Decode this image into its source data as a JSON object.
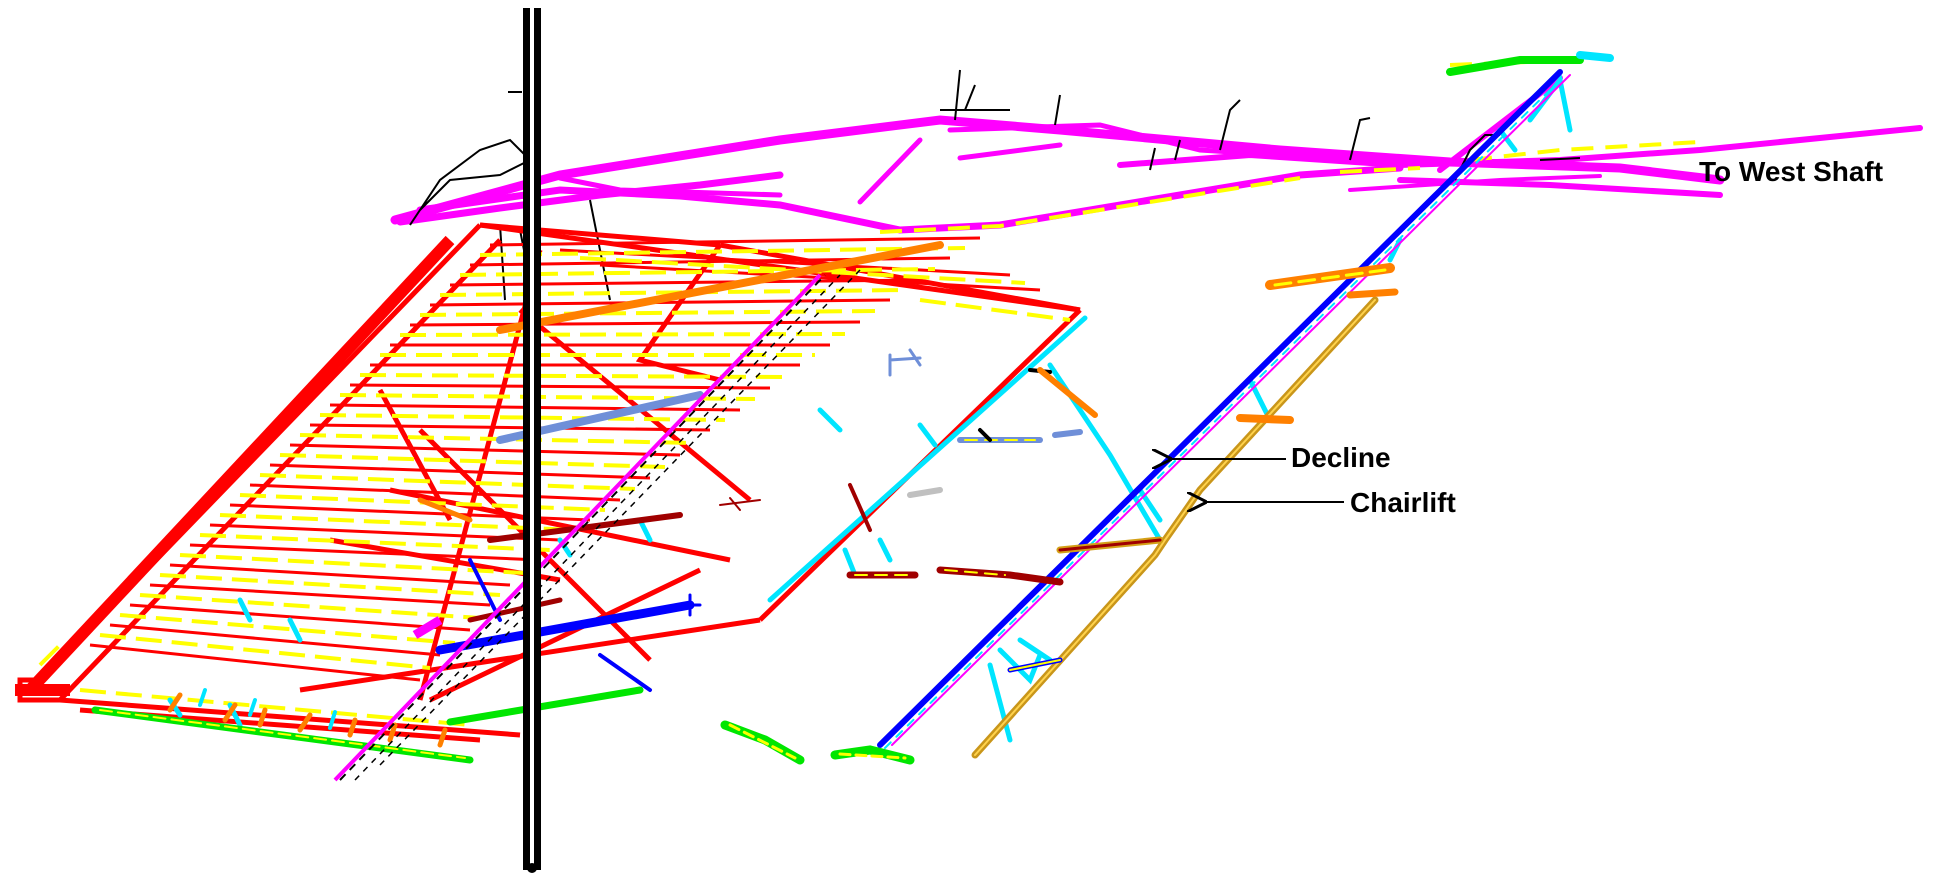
{
  "labels": {
    "west_shaft": "To West Shaft",
    "decline": "Decline",
    "chairlift": "Chairlift"
  },
  "colors": {
    "stope_red": "#ff0000",
    "stope_yellow": "#ffff00",
    "upper_level_magenta": "#ff00ff",
    "connector_cyan": "#00e5ff",
    "decline_blue": "#0000ff",
    "chairlift_gold": "#d4a017",
    "haulage_green": "#00e600",
    "orange": "#ff8000",
    "dark_red": "#a00000",
    "steel_blue": "#6f8fd8",
    "shaft_black": "#000000"
  },
  "icons": {
    "shaft": "vertical-shaft-icon",
    "arrow": "leader-arrow-icon"
  }
}
